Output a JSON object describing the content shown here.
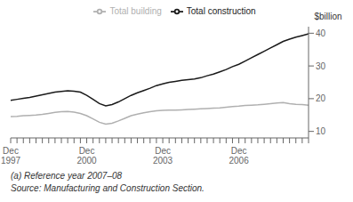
{
  "chart_data": {
    "type": "line",
    "categories": [
      "Dec\n1997",
      null,
      null,
      null,
      null,
      null,
      null,
      null,
      null,
      null,
      null,
      null,
      "Dec\n2000",
      null,
      null,
      null,
      null,
      null,
      null,
      null,
      null,
      null,
      null,
      null,
      "Dec\n2003",
      null,
      null,
      null,
      null,
      null,
      null,
      null,
      null,
      null,
      null,
      null,
      "Dec\n2006",
      null,
      null,
      null,
      null,
      null,
      null,
      null,
      null,
      null,
      null,
      null
    ],
    "series": [
      {
        "name": "Total construction",
        "color": "#1a1a1a",
        "values": [
          19.5,
          19.8,
          20.1,
          20.4,
          20.8,
          21.2,
          21.6,
          22.0,
          22.2,
          22.4,
          22.3,
          22.0,
          21.0,
          19.8,
          18.5,
          17.8,
          18.2,
          19.0,
          20.0,
          21.0,
          21.8,
          22.5,
          23.2,
          24.0,
          24.5,
          25.0,
          25.3,
          25.6,
          25.8,
          26.0,
          26.4,
          27.0,
          27.5,
          28.2,
          28.9,
          29.8,
          30.5,
          31.5,
          32.5,
          33.5,
          34.5,
          35.5,
          36.5,
          37.5,
          38.2,
          38.8,
          39.3,
          39.8
        ]
      },
      {
        "name": "Total building",
        "color": "#b0b0b0",
        "values": [
          14.5,
          14.6,
          14.8,
          14.9,
          15.0,
          15.2,
          15.5,
          15.8,
          16.0,
          16.1,
          15.9,
          15.5,
          14.8,
          13.8,
          12.8,
          12.2,
          12.5,
          13.2,
          14.0,
          14.8,
          15.3,
          15.7,
          16.0,
          16.3,
          16.4,
          16.5,
          16.5,
          16.6,
          16.7,
          16.8,
          16.9,
          17.0,
          17.1,
          17.2,
          17.4,
          17.6,
          17.7,
          17.9,
          18.0,
          18.1,
          18.3,
          18.5,
          18.7,
          18.8,
          18.5,
          18.3,
          18.2,
          18.0
        ]
      }
    ],
    "ylabel": "$billion",
    "ylim": [
      8,
      42
    ],
    "yticks": [
      10,
      20,
      30,
      40
    ],
    "grid": false,
    "legend": "upper center",
    "annotations": [
      "(a) Reference year 2007–08",
      "Source: Manufacturing and Construction Section."
    ]
  }
}
